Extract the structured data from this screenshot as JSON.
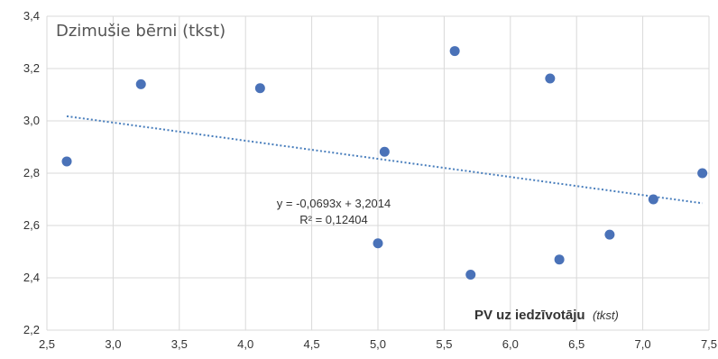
{
  "chart_data": {
    "type": "scatter",
    "title": "Dzimušie bērni (tkst)",
    "xlabel": "PV uz iedzīvotāju",
    "xlabel_unit": "(tkst)",
    "xlim": [
      2.5,
      7.5
    ],
    "ylim": [
      2.2,
      3.4
    ],
    "x_ticks": [
      2.5,
      3.0,
      3.5,
      4.0,
      4.5,
      5.0,
      5.5,
      6.0,
      6.5,
      7.0,
      7.5
    ],
    "y_ticks": [
      2.2,
      2.4,
      2.6,
      2.8,
      3.0,
      3.2,
      3.4
    ],
    "x_tick_labels": [
      "2,5",
      "3,0",
      "3,5",
      "4,0",
      "4,5",
      "5,0",
      "5,5",
      "6,0",
      "6,5",
      "7,0",
      "7,5"
    ],
    "y_tick_labels": [
      "2,2",
      "2,4",
      "2,6",
      "2,8",
      "3,0",
      "3,2",
      "3,4"
    ],
    "grid": true,
    "point_color": "#4a72b8",
    "trend_color": "#4a7fbd",
    "points": [
      {
        "x": 2.65,
        "y": 2.845
      },
      {
        "x": 3.21,
        "y": 3.14
      },
      {
        "x": 4.11,
        "y": 3.125
      },
      {
        "x": 5.0,
        "y": 2.532
      },
      {
        "x": 5.05,
        "y": 2.882
      },
      {
        "x": 5.58,
        "y": 3.267
      },
      {
        "x": 5.7,
        "y": 2.412
      },
      {
        "x": 6.3,
        "y": 3.162
      },
      {
        "x": 6.37,
        "y": 2.47
      },
      {
        "x": 6.75,
        "y": 2.565
      },
      {
        "x": 7.08,
        "y": 2.7
      },
      {
        "x": 7.45,
        "y": 2.8
      }
    ],
    "trendline": {
      "slope": -0.0693,
      "intercept": 3.2014,
      "x_range": [
        2.65,
        7.45
      ],
      "equation": "y = -0,0693x + 3,2014",
      "r_squared": "R² = 0,12404"
    }
  }
}
